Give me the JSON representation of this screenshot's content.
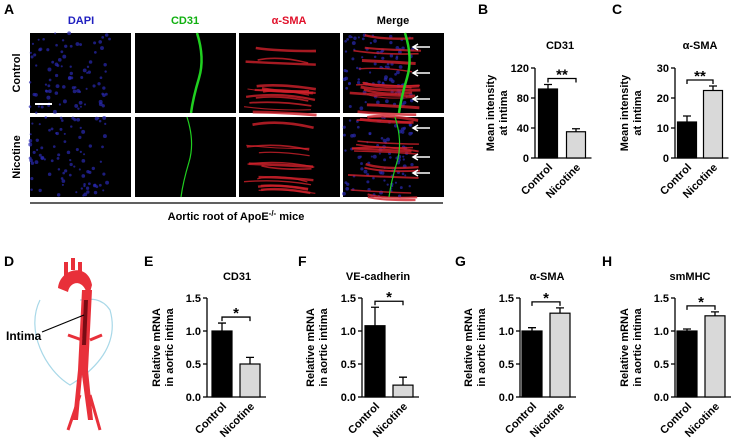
{
  "panel_a": {
    "letter": "A",
    "columns": [
      "DAPI",
      "CD31",
      "α-SMA",
      "Merge"
    ],
    "rows": [
      "Control",
      "Nicotine"
    ],
    "caption": {
      "text": "Aortic root of ApoE",
      "sup": "-/-",
      "suffix": " mice"
    }
  },
  "panel_d": {
    "letter": "D",
    "label": "Intima"
  },
  "chart_data": [
    {
      "type": "bar",
      "panel": "B",
      "title": "CD31",
      "ylabel": [
        "Mean intensity",
        "at intima"
      ],
      "categories": [
        "Control",
        "Nicotine"
      ],
      "values": [
        92,
        35
      ],
      "errors": [
        6,
        4
      ],
      "colors": [
        "#000000",
        "#d9d9d9"
      ],
      "ylim": [
        0,
        120
      ],
      "yticks": [
        0,
        40,
        80,
        120
      ],
      "annotation": "**"
    },
    {
      "type": "bar",
      "panel": "C",
      "title": "α-SMA",
      "ylabel": [
        "Mean intensity",
        "at intima"
      ],
      "categories": [
        "Control",
        "Nicotine"
      ],
      "values": [
        12,
        22.5
      ],
      "errors": [
        2,
        1.5
      ],
      "colors": [
        "#000000",
        "#d9d9d9"
      ],
      "ylim": [
        0,
        30
      ],
      "yticks": [
        0,
        10,
        20,
        30
      ],
      "annotation": "**"
    },
    {
      "type": "bar",
      "panel": "E",
      "title": "CD31",
      "ylabel": [
        "Relative mRNA",
        "in aortic intima"
      ],
      "categories": [
        "Control",
        "Nicotine"
      ],
      "values": [
        1.0,
        0.5
      ],
      "errors": [
        0.12,
        0.1
      ],
      "colors": [
        "#000000",
        "#d9d9d9"
      ],
      "ylim": [
        0,
        1.5
      ],
      "yticks": [
        {
          "value": 0,
          "label": "0.0"
        },
        0.5,
        {
          "value": 1,
          "label": "1.0"
        },
        1.5
      ],
      "annotation": "*"
    },
    {
      "type": "bar",
      "panel": "F",
      "title": "VE-cadherin",
      "ylabel": [
        "Relative mRNA",
        "in aortic intima"
      ],
      "categories": [
        "Control",
        "Nicotine"
      ],
      "values": [
        1.08,
        0.18
      ],
      "errors": [
        0.28,
        0.12
      ],
      "colors": [
        "#000000",
        "#d9d9d9"
      ],
      "ylim": [
        0,
        1.5
      ],
      "yticks": [
        {
          "value": 0,
          "label": "0.0"
        },
        0.5,
        {
          "value": 1,
          "label": "1.0"
        },
        1.5
      ],
      "annotation": "*"
    },
    {
      "type": "bar",
      "panel": "G",
      "title": "α-SMA",
      "ylabel": [
        "Relative mRNA",
        "in aortic intima"
      ],
      "categories": [
        "Control",
        "Nicotine"
      ],
      "values": [
        1.0,
        1.27
      ],
      "errors": [
        0.05,
        0.08
      ],
      "colors": [
        "#000000",
        "#d9d9d9"
      ],
      "ylim": [
        0,
        1.5
      ],
      "yticks": [
        {
          "value": 0,
          "label": "0.0"
        },
        0.5,
        {
          "value": 1,
          "label": "1.0"
        },
        1.5
      ],
      "annotation": "*"
    },
    {
      "type": "bar",
      "panel": "H",
      "title": "smMHC",
      "ylabel": [
        "Relative mRNA",
        "in aortic intima"
      ],
      "categories": [
        "Control",
        "Nicotine"
      ],
      "values": [
        1.0,
        1.23
      ],
      "errors": [
        0.03,
        0.06
      ],
      "colors": [
        "#000000",
        "#d9d9d9"
      ],
      "ylim": [
        0,
        1.5
      ],
      "yticks": [
        {
          "value": 0,
          "label": "0.0"
        },
        0.5,
        {
          "value": 1,
          "label": "1.0"
        },
        1.5
      ],
      "annotation": "*"
    }
  ]
}
